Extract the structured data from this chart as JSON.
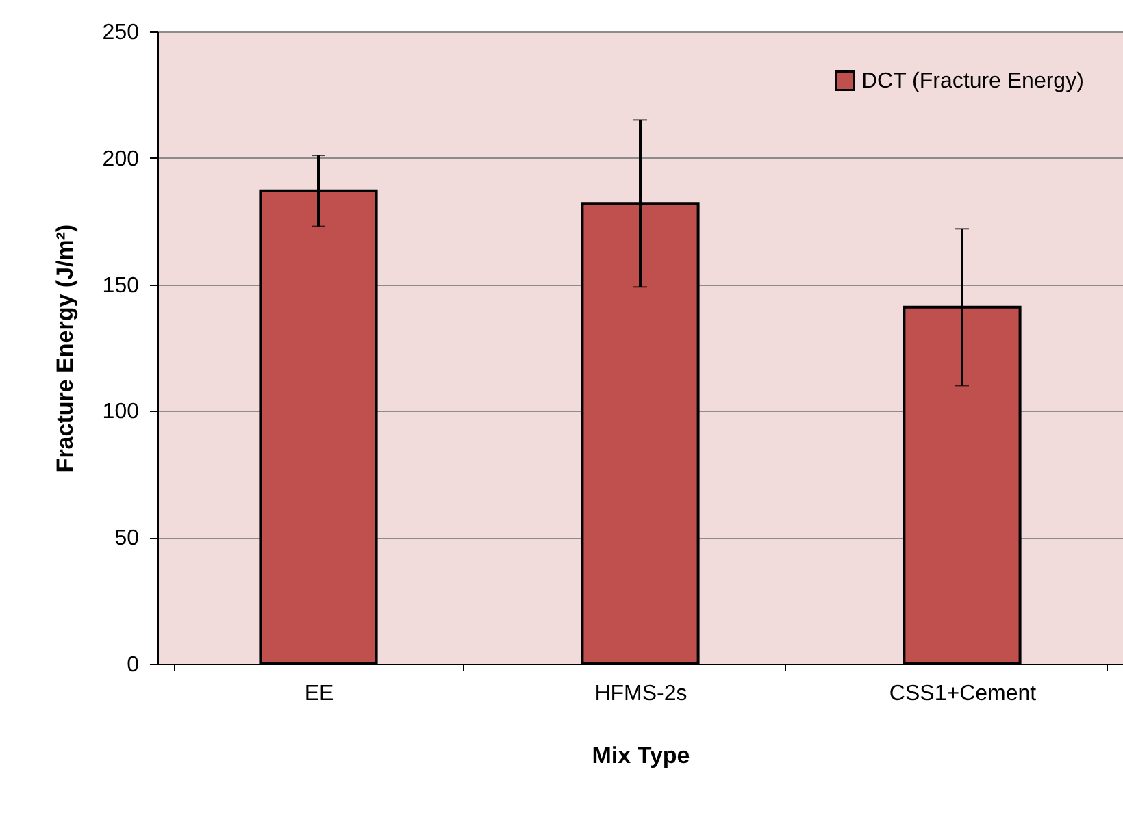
{
  "chart_data": {
    "type": "bar",
    "xlabel": "Mix Type",
    "ylabel": "Fracture Energy (J/m²)",
    "categories": [
      "EE",
      "HFMS-2s",
      "CSS1+Cement"
    ],
    "series": [
      {
        "name": "DCT (Fracture Energy)",
        "color": "#c0504d",
        "values": [
          187,
          182,
          141
        ],
        "errors": [
          14,
          33,
          31
        ]
      }
    ],
    "ylim": [
      0,
      250
    ],
    "yticks": [
      0,
      50,
      100,
      150,
      200,
      250
    ],
    "grid": "y",
    "legend": "top right"
  }
}
